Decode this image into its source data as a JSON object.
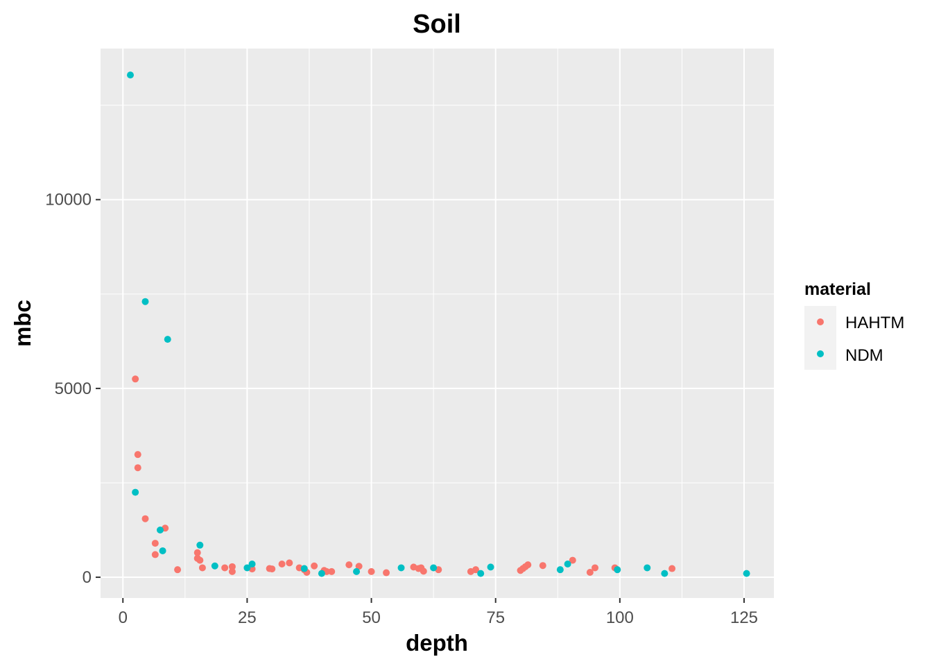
{
  "chart_data": {
    "type": "scatter",
    "title": "Soil",
    "xlabel": "depth",
    "ylabel": "mbc",
    "xlim": [
      -4.5,
      131
    ],
    "ylim": [
      -550,
      14000
    ],
    "x_ticks": [
      0,
      25,
      50,
      75,
      100,
      125
    ],
    "x_tick_labels": [
      "0",
      "25",
      "50",
      "75",
      "100",
      "125"
    ],
    "y_ticks": [
      0,
      5000,
      10000
    ],
    "y_tick_labels": [
      "0",
      "5000",
      "10000"
    ],
    "grid": true,
    "background": "#ebebeb",
    "legend": {
      "title": "material",
      "position": "right"
    },
    "series": [
      {
        "name": "HAHTM",
        "color": "#f8766d",
        "points": [
          [
            2.5,
            5250
          ],
          [
            3,
            3250
          ],
          [
            3,
            2900
          ],
          [
            4.5,
            1550
          ],
          [
            6.5,
            900
          ],
          [
            6.5,
            600
          ],
          [
            8.5,
            1300
          ],
          [
            11,
            200
          ],
          [
            15,
            650
          ],
          [
            15,
            500
          ],
          [
            15.5,
            450
          ],
          [
            16,
            250
          ],
          [
            20.5,
            250
          ],
          [
            22,
            280
          ],
          [
            22,
            150
          ],
          [
            26,
            220
          ],
          [
            29.5,
            230
          ],
          [
            30,
            220
          ],
          [
            32,
            350
          ],
          [
            33.5,
            380
          ],
          [
            35.5,
            250
          ],
          [
            36.5,
            200
          ],
          [
            37,
            130
          ],
          [
            38.5,
            300
          ],
          [
            40.5,
            180
          ],
          [
            41,
            150
          ],
          [
            42,
            150
          ],
          [
            45.5,
            330
          ],
          [
            47.5,
            290
          ],
          [
            50,
            150
          ],
          [
            53,
            120
          ],
          [
            58.5,
            270
          ],
          [
            59.5,
            230
          ],
          [
            60,
            250
          ],
          [
            60.5,
            160
          ],
          [
            63.5,
            200
          ],
          [
            70,
            150
          ],
          [
            71,
            200
          ],
          [
            80,
            180
          ],
          [
            80.5,
            230
          ],
          [
            81,
            280
          ],
          [
            81.5,
            330
          ],
          [
            84.5,
            310
          ],
          [
            90.5,
            450
          ],
          [
            94,
            130
          ],
          [
            95,
            250
          ],
          [
            99,
            250
          ],
          [
            110.5,
            230
          ]
        ]
      },
      {
        "name": "NDM",
        "color": "#00bfc4",
        "points": [
          [
            1.5,
            13300
          ],
          [
            4.5,
            7300
          ],
          [
            9,
            6300
          ],
          [
            2.5,
            2250
          ],
          [
            7.5,
            1250
          ],
          [
            8,
            700
          ],
          [
            15.5,
            850
          ],
          [
            18.5,
            300
          ],
          [
            25,
            250
          ],
          [
            26,
            350
          ],
          [
            36.5,
            230
          ],
          [
            40,
            100
          ],
          [
            47,
            150
          ],
          [
            56,
            250
          ],
          [
            62.5,
            250
          ],
          [
            72,
            100
          ],
          [
            74,
            270
          ],
          [
            88,
            200
          ],
          [
            89.5,
            350
          ],
          [
            99.5,
            200
          ],
          [
            105.5,
            250
          ],
          [
            109,
            100
          ],
          [
            125.5,
            100
          ]
        ]
      }
    ]
  }
}
